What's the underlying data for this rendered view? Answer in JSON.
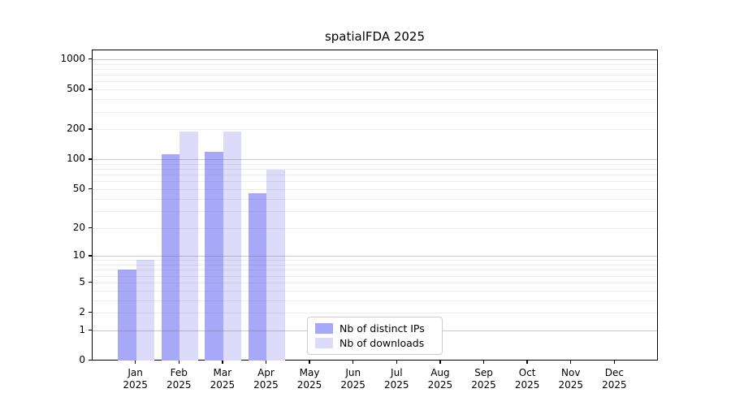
{
  "chart_data": {
    "type": "bar",
    "title": "spatialFDA 2025",
    "categories": [
      "Jan 2025",
      "Feb 2025",
      "Mar 2025",
      "Apr 2025",
      "May 2025",
      "Jun 2025",
      "Jul 2025",
      "Aug 2025",
      "Sep 2025",
      "Oct 2025",
      "Nov 2025",
      "Dec 2025"
    ],
    "series": [
      {
        "name": "Nb of distinct IPs",
        "color": "#a8a8f8",
        "values": [
          7,
          112,
          118,
          45,
          0,
          0,
          0,
          0,
          0,
          0,
          0,
          0
        ]
      },
      {
        "name": "Nb of downloads",
        "color": "#dcdcfa",
        "values": [
          9,
          190,
          190,
          78,
          0,
          0,
          0,
          0,
          0,
          0,
          0,
          0
        ]
      }
    ],
    "yscale": "log1p",
    "yticks": [
      0,
      1,
      2,
      5,
      10,
      20,
      50,
      100,
      200,
      500,
      1000
    ],
    "minor_gridlines": [
      2,
      3,
      4,
      5,
      6,
      7,
      8,
      9,
      20,
      30,
      40,
      50,
      60,
      70,
      80,
      90,
      200,
      300,
      400,
      500,
      600,
      700,
      800,
      900
    ],
    "major_gridlines": [
      1,
      10,
      100,
      1000
    ],
    "ylim": [
      0,
      1260
    ],
    "xlabel": "",
    "ylabel": "",
    "grid": true,
    "legend_position": "lower center inside"
  }
}
